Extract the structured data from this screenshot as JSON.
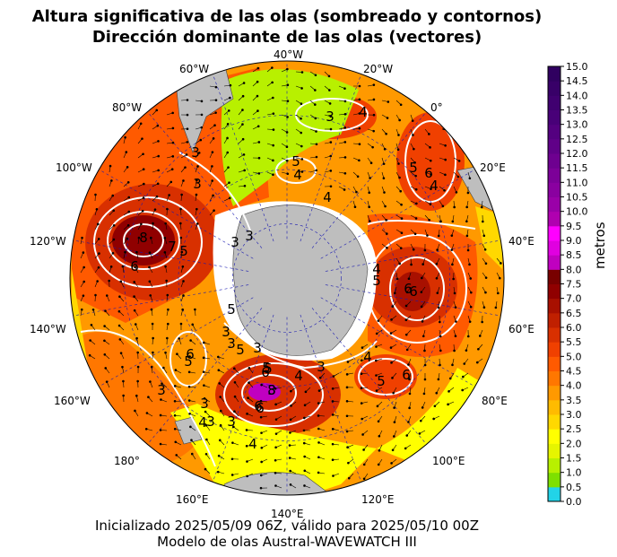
{
  "title_line1": "Altura significativa de las olas (sombreado y contornos)",
  "title_line2": "Dirección dominante de las olas (vectores)",
  "longitude_labels": [
    {
      "text": "40°W"
    },
    {
      "text": "20°W"
    },
    {
      "text": "0°"
    },
    {
      "text": "20°E"
    },
    {
      "text": "40°E"
    },
    {
      "text": "60°E"
    },
    {
      "text": "80°E"
    },
    {
      "text": "100°E"
    },
    {
      "text": "120°E"
    },
    {
      "text": "140°E"
    },
    {
      "text": "160°E"
    },
    {
      "text": "180°"
    },
    {
      "text": "160°W"
    },
    {
      "text": "140°W"
    },
    {
      "text": "120°W"
    },
    {
      "text": "100°W"
    },
    {
      "text": "80°W"
    },
    {
      "text": "60°W"
    }
  ],
  "colorbar": {
    "label": "metros",
    "ticks": [
      "0.0",
      "0.5",
      "1.0",
      "1.5",
      "2.0",
      "2.5",
      "3.0",
      "3.5",
      "4.0",
      "4.5",
      "5.0",
      "5.5",
      "6.0",
      "6.5",
      "7.0",
      "7.5",
      "8.0",
      "8.5",
      "9.0",
      "9.5",
      "10.0",
      "10.5",
      "11.0",
      "11.5",
      "12.0",
      "12.5",
      "13.0",
      "13.5",
      "14.0",
      "14.5",
      "15.0"
    ],
    "colors": [
      "#22d3e8",
      "#7ee000",
      "#b8f000",
      "#e6f500",
      "#ffff00",
      "#ffd800",
      "#ffbb00",
      "#ff9900",
      "#ff7700",
      "#ff5a00",
      "#f04000",
      "#d83000",
      "#c02000",
      "#a81000",
      "#900000",
      "#780000",
      "#c000c0",
      "#e000e0",
      "#ff00ff",
      "#b000b0",
      "#9a00a8",
      "#8a00a0",
      "#7c0098",
      "#6e0090",
      "#600088",
      "#540080",
      "#480078",
      "#400070",
      "#380068",
      "#300060"
    ]
  },
  "contour_labels": [
    "3",
    "4",
    "3",
    "5",
    "4",
    "3",
    "4",
    "6",
    "5",
    "4",
    "3",
    "5",
    "6",
    "8",
    "7",
    "5",
    "6",
    "3",
    "3",
    "6",
    "5",
    "4",
    "5",
    "6",
    "3",
    "3",
    "5",
    "6",
    "5",
    "3",
    "3",
    "4",
    "3",
    "5",
    "6",
    "4",
    "5",
    "6",
    "3",
    "3",
    "4",
    "8",
    "6",
    "3",
    "4",
    "3"
  ],
  "caption_line1": "Inicializado 2025/05/09 06Z, válido para 2025/05/10 00Z",
  "caption_line2": "Modelo de olas Austral-WAVEWATCH III"
}
